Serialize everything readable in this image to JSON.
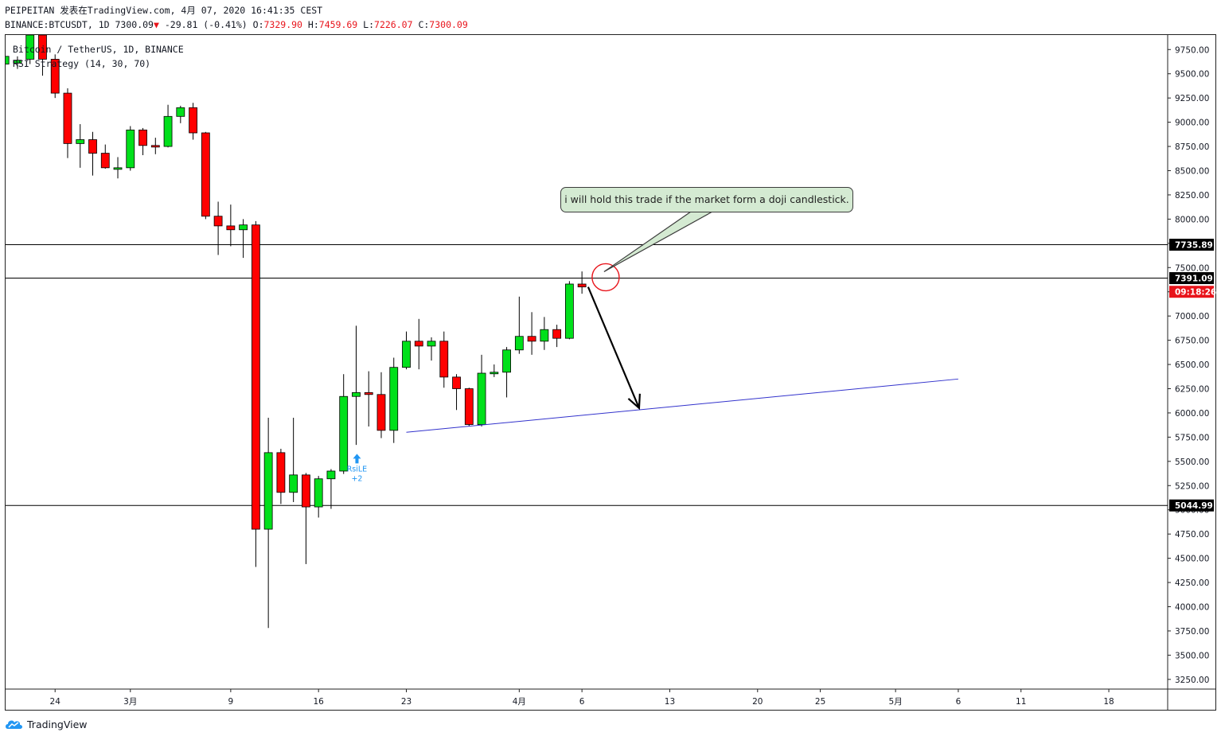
{
  "header": {
    "line1": "PEIPEITAN 发表在TradingView.com, 4月 07, 2020 16:41:35 CEST",
    "symbol": "BINANCE:BTCUSDT, 1D",
    "last": "7300.09",
    "change_arrow": "▼",
    "change": "-29.81 (-0.41%)",
    "o_label": "O:",
    "open": "7329.90",
    "h_label": "H:",
    "high": "7459.69",
    "l_label": "L:",
    "low": "7226.07",
    "c_label": "C:",
    "close": "7300.09"
  },
  "legend": {
    "title": "Bitcoin / TetherUS, 1D, BINANCE",
    "strategy": "RSI Strategy (14, 30, 70)"
  },
  "annotation": {
    "callout_text": "i will hold this trade if the market form a doji candlestick."
  },
  "footer": {
    "brand": "TradingView",
    "logo_icon": "tradingview-cloud-icon"
  },
  "colors": {
    "up": "#00e01b",
    "down": "#ff0000",
    "trendline": "#3333cc",
    "level_line": "#000000",
    "countdown_bg": "#e8141b",
    "signal": "#2196f3",
    "callout_bg": "#d4ead2",
    "circle": "#e8141b"
  },
  "chart_data": {
    "type": "candlestick",
    "symbol": "BTCUSDT",
    "interval": "1D",
    "ylim": [
      3150,
      9900
    ],
    "y_ticks": [
      3250,
      3500,
      3750,
      4000,
      4250,
      4500,
      4750,
      5000,
      5250,
      5500,
      5750,
      6000,
      6250,
      6500,
      6750,
      7000,
      7250,
      7500,
      7750,
      8000,
      8250,
      8500,
      8750,
      9000,
      9250,
      9500,
      9750
    ],
    "y_tick_labels": [
      "3250.00",
      "3500.00",
      "3750.00",
      "4000.00",
      "4250.00",
      "4500.00",
      "4750.00",
      "5000.00",
      "5250.00",
      "5500.00",
      "5750.00",
      "6000.00",
      "6250.00",
      "6500.00",
      "6750.00",
      "7000.00",
      "7250.00",
      "7500.00",
      "7750.00",
      "8000.00",
      "8250.00",
      "8500.00",
      "8750.00",
      "9000.00",
      "9250.00",
      "9500.00",
      "9750.00"
    ],
    "x_ticks": [
      {
        "label": "24",
        "date": "2020-02-24"
      },
      {
        "label": "3月",
        "date": "2020-03-01"
      },
      {
        "label": "9",
        "date": "2020-03-09"
      },
      {
        "label": "16",
        "date": "2020-03-16"
      },
      {
        "label": "23",
        "date": "2020-03-23"
      },
      {
        "label": "4月",
        "date": "2020-04-01"
      },
      {
        "label": "6",
        "date": "2020-04-06"
      },
      {
        "label": "13",
        "date": "2020-04-13"
      },
      {
        "label": "20",
        "date": "2020-04-20"
      },
      {
        "label": "25",
        "date": "2020-04-25"
      },
      {
        "label": "5月",
        "date": "2020-05-01"
      },
      {
        "label": "6",
        "date": "2020-05-06"
      },
      {
        "label": "11",
        "date": "2020-05-11"
      },
      {
        "label": "18",
        "date": "2020-05-18"
      }
    ],
    "candles": [
      {
        "date": "2020-02-20",
        "o": 9600,
        "h": 9700,
        "l": 9500,
        "c": 9680
      },
      {
        "date": "2020-02-21",
        "o": 9610,
        "h": 9680,
        "l": 9550,
        "c": 9640
      },
      {
        "date": "2020-02-22",
        "o": 9650,
        "h": 9900,
        "l": 9600,
        "c": 9900
      },
      {
        "date": "2020-02-23",
        "o": 9900,
        "h": 9950,
        "l": 9480,
        "c": 9650
      },
      {
        "date": "2020-02-24",
        "o": 9650,
        "h": 9700,
        "l": 9250,
        "c": 9300
      },
      {
        "date": "2020-02-25",
        "o": 9300,
        "h": 9350,
        "l": 8630,
        "c": 8780
      },
      {
        "date": "2020-02-26",
        "o": 8780,
        "h": 8980,
        "l": 8530,
        "c": 8820
      },
      {
        "date": "2020-02-27",
        "o": 8820,
        "h": 8900,
        "l": 8450,
        "c": 8680
      },
      {
        "date": "2020-02-28",
        "o": 8680,
        "h": 8770,
        "l": 8520,
        "c": 8530
      },
      {
        "date": "2020-02-29",
        "o": 8530,
        "h": 8640,
        "l": 8420,
        "c": 8530
      },
      {
        "date": "2020-03-01",
        "o": 8530,
        "h": 8960,
        "l": 8500,
        "c": 8920
      },
      {
        "date": "2020-03-02",
        "o": 8920,
        "h": 8940,
        "l": 8660,
        "c": 8760
      },
      {
        "date": "2020-03-03",
        "o": 8760,
        "h": 8840,
        "l": 8670,
        "c": 8750
      },
      {
        "date": "2020-03-04",
        "o": 8750,
        "h": 9180,
        "l": 8740,
        "c": 9060
      },
      {
        "date": "2020-03-05",
        "o": 9060,
        "h": 9170,
        "l": 8990,
        "c": 9150
      },
      {
        "date": "2020-03-06",
        "o": 9150,
        "h": 9200,
        "l": 8820,
        "c": 8890
      },
      {
        "date": "2020-03-07",
        "o": 8890,
        "h": 8900,
        "l": 8000,
        "c": 8030
      },
      {
        "date": "2020-03-08",
        "o": 8030,
        "h": 8180,
        "l": 7630,
        "c": 7930
      },
      {
        "date": "2020-03-09",
        "o": 7930,
        "h": 8150,
        "l": 7720,
        "c": 7890
      },
      {
        "date": "2020-03-10",
        "o": 7890,
        "h": 8000,
        "l": 7600,
        "c": 7940
      },
      {
        "date": "2020-03-11",
        "o": 7940,
        "h": 7980,
        "l": 4410,
        "c": 4800
      },
      {
        "date": "2020-03-12",
        "o": 4800,
        "h": 5950,
        "l": 3780,
        "c": 5590
      },
      {
        "date": "2020-03-13",
        "o": 5590,
        "h": 5630,
        "l": 5060,
        "c": 5180
      },
      {
        "date": "2020-03-14",
        "o": 5180,
        "h": 5950,
        "l": 5080,
        "c": 5360
      },
      {
        "date": "2020-03-15",
        "o": 5360,
        "h": 5380,
        "l": 4440,
        "c": 5030
      },
      {
        "date": "2020-03-16",
        "o": 5030,
        "h": 5350,
        "l": 4920,
        "c": 5320
      },
      {
        "date": "2020-03-17",
        "o": 5320,
        "h": 5420,
        "l": 5010,
        "c": 5400
      },
      {
        "date": "2020-03-18",
        "o": 5400,
        "h": 6400,
        "l": 5370,
        "c": 6170
      },
      {
        "date": "2020-03-19",
        "o": 6170,
        "h": 6900,
        "l": 5670,
        "c": 6210
      },
      {
        "date": "2020-03-20",
        "o": 6210,
        "h": 6430,
        "l": 5860,
        "c": 6190
      },
      {
        "date": "2020-03-21",
        "o": 6190,
        "h": 6420,
        "l": 5740,
        "c": 5820
      },
      {
        "date": "2020-03-22",
        "o": 5820,
        "h": 6570,
        "l": 5690,
        "c": 6470
      },
      {
        "date": "2020-03-23",
        "o": 6470,
        "h": 6840,
        "l": 6450,
        "c": 6740
      },
      {
        "date": "2020-03-24",
        "o": 6740,
        "h": 6970,
        "l": 6450,
        "c": 6690
      },
      {
        "date": "2020-03-25",
        "o": 6690,
        "h": 6780,
        "l": 6540,
        "c": 6740
      },
      {
        "date": "2020-03-26",
        "o": 6740,
        "h": 6840,
        "l": 6260,
        "c": 6370
      },
      {
        "date": "2020-03-27",
        "o": 6370,
        "h": 6400,
        "l": 6030,
        "c": 6250
      },
      {
        "date": "2020-03-28",
        "o": 6250,
        "h": 6260,
        "l": 5860,
        "c": 5880
      },
      {
        "date": "2020-03-29",
        "o": 5880,
        "h": 6600,
        "l": 5860,
        "c": 6410
      },
      {
        "date": "2020-03-30",
        "o": 6410,
        "h": 6500,
        "l": 6370,
        "c": 6420
      },
      {
        "date": "2020-03-31",
        "o": 6420,
        "h": 6680,
        "l": 6160,
        "c": 6650
      },
      {
        "date": "2020-04-01",
        "o": 6650,
        "h": 7200,
        "l": 6610,
        "c": 6790
      },
      {
        "date": "2020-04-02",
        "o": 6790,
        "h": 7040,
        "l": 6600,
        "c": 6740
      },
      {
        "date": "2020-04-03",
        "o": 6740,
        "h": 6990,
        "l": 6650,
        "c": 6860
      },
      {
        "date": "2020-04-04",
        "o": 6860,
        "h": 6910,
        "l": 6680,
        "c": 6770
      },
      {
        "date": "2020-04-05",
        "o": 6770,
        "h": 7360,
        "l": 6760,
        "c": 7330
      },
      {
        "date": "2020-04-06",
        "o": 7330,
        "h": 7460,
        "l": 7230,
        "c": 7300
      }
    ],
    "price_labels": [
      {
        "value": 7735.89,
        "text": "7735.89",
        "style": "level"
      },
      {
        "value": 7391.09,
        "text": "7391.09",
        "style": "level"
      },
      {
        "value": 7250,
        "text": "09:18:26",
        "style": "countdown"
      },
      {
        "value": 5044.99,
        "text": "5044.99",
        "style": "level"
      }
    ],
    "horizontal_lines": [
      7735.89,
      7391.09,
      5044.99
    ],
    "trendline": {
      "from": {
        "date": "2020-03-23",
        "price": 5800
      },
      "to": {
        "date": "2020-05-06",
        "price": 6350
      }
    },
    "arrow": {
      "from": {
        "date": "2020-04-07",
        "price": 7300
      },
      "to": {
        "date": "2020-04-11",
        "price": 6050
      }
    },
    "circle_marker": {
      "date": "2020-04-07",
      "price": 7400
    },
    "signal": {
      "date": "2020-03-19",
      "label": "RsiLE",
      "qty": "+2",
      "price": 5380
    }
  }
}
